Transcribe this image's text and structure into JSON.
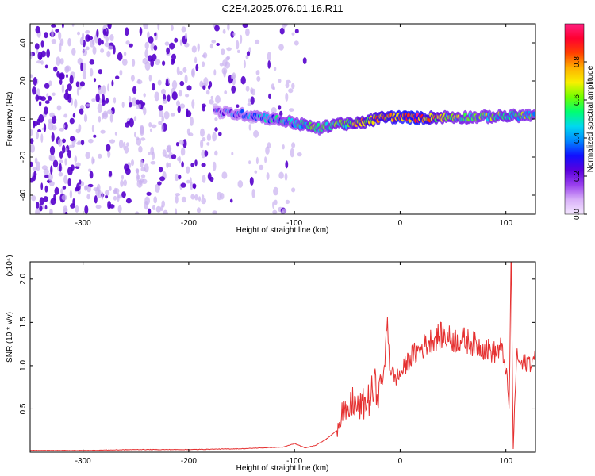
{
  "title": "C2E4.2025.076.01.16.R11",
  "colors": {
    "signal_line": "#e53030",
    "speckle_dark": "#5500cc",
    "speckle_light": "#c9b0f0"
  },
  "chart_data": [
    {
      "type": "heatmap",
      "xlabel": "Height of straight line (km)",
      "ylabel": "Frequency (Hz)",
      "xlim": [
        -350,
        128
      ],
      "ylim": [
        -50,
        50
      ],
      "xticks": [
        -300,
        -200,
        -100,
        0,
        100
      ],
      "yticks": [
        -40,
        -20,
        0,
        20,
        40
      ],
      "xtick_labels": [
        "-300",
        "-200",
        "-100",
        "0",
        "100"
      ],
      "ytick_labels": [
        "-40",
        "-20",
        "0",
        "20",
        "40"
      ],
      "colorbar": {
        "label": "Normalized spectral amplitude",
        "range": [
          0,
          1
        ],
        "ticks": [
          0.0,
          0.2,
          0.4,
          0.6,
          0.8
        ],
        "tick_labels": [
          "0.0",
          "0.2",
          "0.4",
          "0.6",
          "0.8"
        ],
        "colormap": [
          "#f4e6ff",
          "#d8b0f8",
          "#9a40ee",
          "#5a00dd",
          "#1010ff",
          "#0088ff",
          "#00d8f0",
          "#00ff70",
          "#70ff00",
          "#f8f000",
          "#ffb000",
          "#ff4000",
          "#ff0030",
          "#ff2080"
        ]
      },
      "noise_region_x": [
        -350,
        -90
      ],
      "ridge": [
        {
          "x": -175,
          "y": 4,
          "amp": 0.25
        },
        {
          "x": -160,
          "y": 3,
          "amp": 0.3
        },
        {
          "x": -140,
          "y": 2,
          "amp": 0.35
        },
        {
          "x": -120,
          "y": 0,
          "amp": 0.4
        },
        {
          "x": -100,
          "y": -2,
          "amp": 0.45
        },
        {
          "x": -85,
          "y": -4,
          "amp": 0.55
        },
        {
          "x": -75,
          "y": -5,
          "amp": 0.5
        },
        {
          "x": -60,
          "y": -2,
          "amp": 0.55
        },
        {
          "x": -45,
          "y": -3,
          "amp": 0.6
        },
        {
          "x": -30,
          "y": -1,
          "amp": 0.7
        },
        {
          "x": -15,
          "y": 1,
          "amp": 0.75
        },
        {
          "x": 0,
          "y": 1,
          "amp": 0.85
        },
        {
          "x": 15,
          "y": 0.5,
          "amp": 0.9
        },
        {
          "x": 40,
          "y": 1,
          "amp": 0.6
        },
        {
          "x": 70,
          "y": 1,
          "amp": 0.5
        },
        {
          "x": 100,
          "y": 1.5,
          "amp": 0.55
        },
        {
          "x": 128,
          "y": 2,
          "amp": 0.5
        }
      ]
    },
    {
      "type": "line",
      "xlabel": "Height of straight line (km)",
      "ylabel": "SNR (10 * v/v)",
      "scale_note": "(x10⁴)",
      "xlim": [
        -350,
        128
      ],
      "ylim": [
        0,
        2.2
      ],
      "xticks": [
        -300,
        -200,
        -100,
        0,
        100
      ],
      "yticks": [
        0.5,
        1.0,
        1.5,
        2.0
      ],
      "xtick_labels": [
        "-300",
        "-200",
        "-100",
        "0",
        "100"
      ],
      "ytick_labels": [
        "0.5",
        "1.0",
        "1.5",
        "2.0"
      ],
      "series": [
        {
          "color": "#e53030",
          "x": [
            -350,
            -300,
            -250,
            -200,
            -150,
            -110,
            -100,
            -90,
            -80,
            -70,
            -60,
            -55,
            -50,
            -45,
            -40,
            -35,
            -30,
            -25,
            -20,
            -15,
            -12,
            -10,
            -5,
            0,
            10,
            20,
            30,
            40,
            50,
            60,
            70,
            80,
            90,
            95,
            100,
            103,
            105,
            107,
            110,
            115,
            120,
            128
          ],
          "y": [
            0.02,
            0.02,
            0.03,
            0.03,
            0.04,
            0.06,
            0.1,
            0.05,
            0.08,
            0.15,
            0.25,
            0.5,
            0.4,
            0.6,
            0.5,
            0.55,
            0.6,
            0.7,
            0.8,
            0.9,
            1.6,
            1.0,
            0.85,
            0.9,
            1.1,
            1.2,
            1.3,
            1.35,
            1.3,
            1.3,
            1.25,
            1.2,
            1.15,
            1.2,
            1.0,
            0.5,
            2.2,
            0.05,
            1.1,
            1.0,
            1.05,
            1.05
          ]
        }
      ]
    }
  ]
}
